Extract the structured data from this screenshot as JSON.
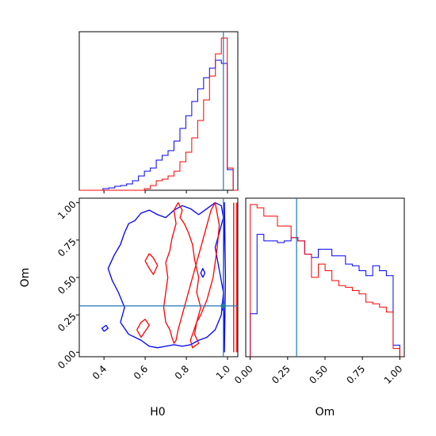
{
  "chart_data": {
    "type": "corner",
    "parameters": [
      "H0",
      "Om"
    ],
    "colors": {
      "series_a": "#ff0000",
      "series_b": "#0000ff",
      "truth": "#1f77b4"
    },
    "truth": {
      "H0": 0.98,
      "Om": 0.31
    },
    "h0_hist": {
      "xlim": [
        0.28,
        1.05
      ],
      "bins": [
        0.28,
        0.3088,
        0.3375,
        0.3662,
        0.395,
        0.4238,
        0.4525,
        0.4812,
        0.51,
        0.5388,
        0.5675,
        0.5962,
        0.625,
        0.6538,
        0.6825,
        0.7112,
        0.74,
        0.7688,
        0.7975,
        0.8262,
        0.855,
        0.8838,
        0.9125,
        0.9412,
        0.97,
        0.9988,
        1.0275,
        1.05
      ],
      "series_a": [
        0,
        0,
        0,
        0,
        0,
        0,
        0,
        0,
        0,
        0,
        0,
        0.01,
        0.03,
        0.06,
        0.07,
        0.09,
        0.12,
        0.18,
        0.24,
        0.33,
        0.44,
        0.57,
        0.72,
        0.86,
        0.96,
        0.14,
        0
      ],
      "series_b": [
        0,
        0,
        0,
        0,
        0.01,
        0.015,
        0.025,
        0.03,
        0.04,
        0.06,
        0.09,
        0.12,
        0.14,
        0.19,
        0.22,
        0.25,
        0.31,
        0.39,
        0.47,
        0.56,
        0.64,
        0.71,
        0.77,
        0.82,
        0.8,
        0.13,
        0
      ]
    },
    "om_hist": {
      "xlim": [
        -0.03,
        1.03
      ],
      "bins": [
        0.0,
        0.0455,
        0.091,
        0.1365,
        0.182,
        0.2275,
        0.273,
        0.3185,
        0.364,
        0.4095,
        0.455,
        0.5005,
        0.546,
        0.5915,
        0.637,
        0.6825,
        0.728,
        0.7735,
        0.819,
        0.8645,
        0.91,
        0.9555,
        1.0
      ],
      "series_a": [
        0.92,
        0.9,
        0.85,
        0.85,
        0.79,
        0.79,
        0.72,
        0.7,
        0.62,
        0.48,
        0.56,
        0.52,
        0.46,
        0.43,
        0.42,
        0.4,
        0.38,
        0.33,
        0.32,
        0.3,
        0.27,
        0.05
      ],
      "series_b": [
        0.26,
        0.74,
        0.7,
        0.7,
        0.69,
        0.7,
        0.72,
        0.7,
        0.62,
        0.6,
        0.65,
        0.65,
        0.61,
        0.61,
        0.56,
        0.55,
        0.52,
        0.49,
        0.55,
        0.52,
        0.49,
        0.07
      ]
    },
    "joint": {
      "xlim": [
        0.28,
        1.05
      ],
      "ylim": [
        -0.03,
        1.03
      ],
      "series_a": [
        {
          "x": [
            0.94,
            0.96,
            0.95,
            0.93,
            0.9,
            0.87,
            0.85,
            0.84,
            0.86,
            0.83,
            0.82,
            0.85,
            0.87,
            0.85,
            0.86,
            0.84,
            0.83,
            0.81,
            0.79,
            0.77,
            0.78,
            0.76,
            0.74,
            0.75,
            0.73,
            0.72,
            0.7,
            0.71,
            0.7,
            0.69,
            0.7,
            0.72,
            0.73,
            0.74,
            0.75,
            0.76,
            0.78,
            0.8,
            0.82,
            0.84,
            0.86,
            0.88,
            0.9,
            0.92,
            0.94
          ],
          "y": [
            1.0,
            0.85,
            0.7,
            0.5,
            0.35,
            0.25,
            0.2,
            0.12,
            0.06,
            0.03,
            0.08,
            0.2,
            0.3,
            0.4,
            0.5,
            0.62,
            0.72,
            0.8,
            0.86,
            0.9,
            0.95,
            1.0,
            0.95,
            0.86,
            0.76,
            0.68,
            0.6,
            0.5,
            0.4,
            0.3,
            0.2,
            0.15,
            0.1,
            0.06,
            0.08,
            0.15,
            0.25,
            0.35,
            0.45,
            0.55,
            0.65,
            0.75,
            0.85,
            0.95,
            1.0
          ]
        },
        {
          "x": [
            0.58,
            0.6,
            0.62,
            0.6,
            0.58,
            0.56,
            0.58
          ],
          "y": [
            0.1,
            0.14,
            0.18,
            0.22,
            0.2,
            0.15,
            0.1
          ]
        },
        {
          "x": [
            0.62,
            0.64,
            0.66,
            0.64,
            0.62,
            0.6,
            0.62
          ],
          "y": [
            0.66,
            0.63,
            0.58,
            0.52,
            0.56,
            0.61,
            0.66
          ]
        },
        {
          "x": [
            1.03,
            1.03
          ],
          "y": [
            0.0,
            1.0
          ]
        },
        {
          "x": [
            1.045,
            1.045
          ],
          "y": [
            0.0,
            1.0
          ]
        }
      ],
      "series_b": [
        {
          "x": [
            0.48,
            0.52,
            0.58,
            0.62,
            0.66,
            0.7,
            0.74,
            0.78,
            0.82,
            0.86,
            0.9,
            0.94,
            0.97,
            0.98,
            0.96,
            0.94,
            0.96,
            0.98,
            0.97,
            0.94,
            0.9,
            0.86,
            0.82,
            0.78,
            0.74,
            0.7,
            0.66,
            0.62,
            0.58,
            0.55,
            0.52,
            0.5,
            0.48,
            0.45,
            0.42,
            0.44,
            0.47,
            0.5,
            0.48
          ],
          "y": [
            0.2,
            0.12,
            0.08,
            0.04,
            0.03,
            0.04,
            0.05,
            0.04,
            0.05,
            0.08,
            0.1,
            0.15,
            0.25,
            0.4,
            0.55,
            0.7,
            0.8,
            0.9,
            0.98,
            1.0,
            0.96,
            0.92,
            0.96,
            0.98,
            0.95,
            0.9,
            0.92,
            0.95,
            0.93,
            0.88,
            0.86,
            0.8,
            0.72,
            0.65,
            0.56,
            0.48,
            0.4,
            0.3,
            0.2
          ]
        },
        {
          "x": [
            0.4,
            0.42,
            0.41,
            0.39,
            0.4
          ],
          "y": [
            0.14,
            0.16,
            0.18,
            0.16,
            0.14
          ]
        },
        {
          "x": [
            0.88,
            0.89,
            0.88,
            0.87,
            0.88
          ],
          "y": [
            0.5,
            0.53,
            0.56,
            0.53,
            0.5
          ]
        },
        {
          "x": [
            0.975,
            0.985,
            0.98,
            0.97,
            0.975
          ],
          "y": [
            0.28,
            0.31,
            0.34,
            0.31,
            0.28
          ]
        },
        {
          "x": [
            0.985,
            0.99,
            0.985,
            0.98,
            0.985
          ],
          "y": [
            0.0,
            0.5,
            1.0,
            0.5,
            0.0
          ]
        }
      ]
    },
    "axes": {
      "h0_ticks": [
        0.4,
        0.6,
        0.8,
        1.0
      ],
      "h0_tick_labels": [
        "0.4",
        "0.6",
        "0.8",
        "1.0"
      ],
      "om_ticks": [
        0.0,
        0.25,
        0.5,
        0.75,
        1.0
      ],
      "om_tick_labels": [
        "0.00",
        "0.25",
        "0.50",
        "0.75",
        "1.00"
      ],
      "xlabel_joint": "H0",
      "ylabel_joint": "Om",
      "xlabel_om": "Om"
    }
  }
}
